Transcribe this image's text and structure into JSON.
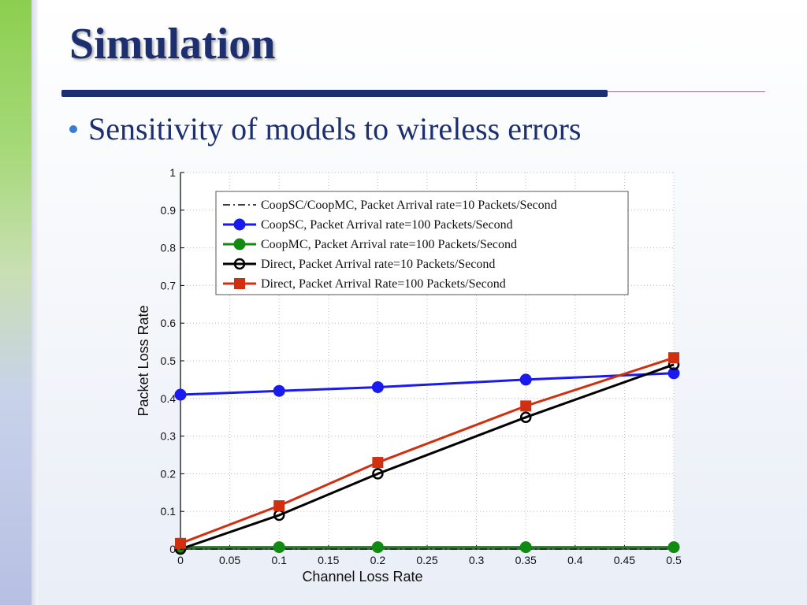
{
  "slide": {
    "title": "Simulation",
    "bullet": "Sensitivity of models to wireless errors"
  },
  "colors": {
    "title": "#1d2f6f",
    "bullet_dot": "#3b7bd1",
    "accent_green": "#8ccf4f"
  },
  "chart_data": {
    "type": "line",
    "title": "",
    "xlabel": "Channel Loss Rate",
    "ylabel": "Packet Loss Rate",
    "xlim": [
      0,
      0.5
    ],
    "ylim": [
      0,
      1
    ],
    "xticks": [
      "0",
      "0.05",
      "0.1",
      "0.15",
      "0.2",
      "0.25",
      "0.3",
      "0.35",
      "0.4",
      "0.45",
      "0.5"
    ],
    "yticks": [
      "0",
      "0.1",
      "0.2",
      "0.3",
      "0.4",
      "0.5",
      "0.6",
      "0.7",
      "0.8",
      "0.9",
      "1"
    ],
    "grid": true,
    "legend_position": "top-right",
    "series": [
      {
        "name": "CoopSC/CoopMC, Packet Arrival rate=10 Packets/Second",
        "color": "#000000",
        "style": "dashdot",
        "marker": "none",
        "x": [
          0,
          0.1,
          0.2,
          0.35,
          0.5
        ],
        "y": [
          0,
          0,
          0,
          0,
          0
        ]
      },
      {
        "name": "CoopSC, Packet Arrival rate=100 Packets/Second",
        "color": "#1a1aee",
        "style": "solid",
        "marker": "circle",
        "x": [
          0,
          0.1,
          0.2,
          0.35,
          0.5
        ],
        "y": [
          0.41,
          0.42,
          0.43,
          0.45,
          0.467
        ]
      },
      {
        "name": "CoopMC, Packet Arrival rate=100 Packets/Second",
        "color": "#118a11",
        "style": "solid",
        "marker": "circle",
        "x": [
          0,
          0.1,
          0.2,
          0.35,
          0.5
        ],
        "y": [
          0.005,
          0.005,
          0.005,
          0.005,
          0.005
        ]
      },
      {
        "name": "Direct, Packet Arrival rate=10 Packets/Second",
        "color": "#000000",
        "style": "solid",
        "marker": "open-circle",
        "x": [
          0,
          0.1,
          0.2,
          0.35,
          0.5
        ],
        "y": [
          0,
          0.09,
          0.2,
          0.35,
          0.49
        ]
      },
      {
        "name": "Direct, Packet Arrival Rate=100 Packets/Second",
        "color": "#d03010",
        "style": "solid",
        "marker": "square",
        "x": [
          0,
          0.1,
          0.2,
          0.35,
          0.5
        ],
        "y": [
          0.015,
          0.115,
          0.23,
          0.38,
          0.508
        ]
      }
    ]
  }
}
